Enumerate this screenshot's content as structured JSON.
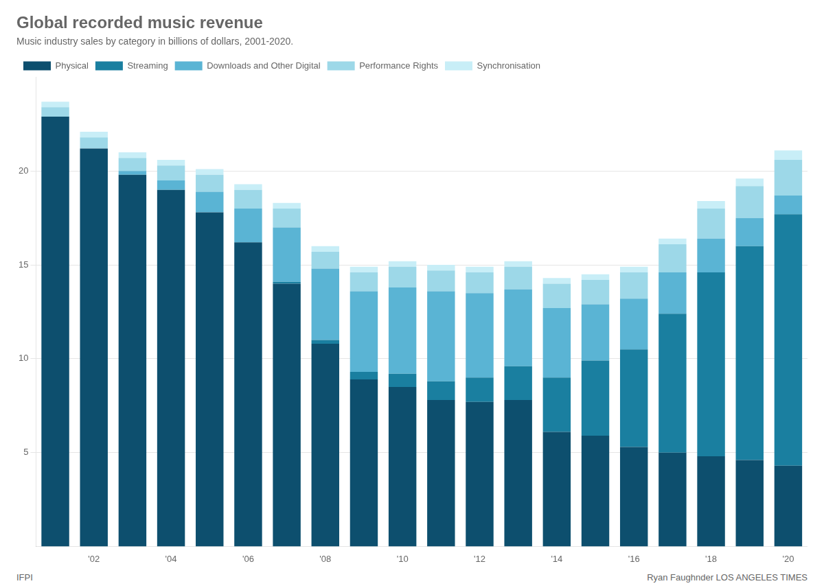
{
  "chart_data": {
    "type": "bar",
    "title": "Global recorded music revenue",
    "subtitle": "Music industry sales by category in billions of dollars, 2001-2020.",
    "annotations": [
      "IFPI",
      "Ryan Faughnder  LOS ANGELES TIMES"
    ],
    "categories": [
      null,
      "'02",
      null,
      "'04",
      null,
      "'06",
      null,
      "'08",
      null,
      "'10",
      null,
      "'12",
      null,
      "'14",
      null,
      "'16",
      null,
      "'18",
      null,
      "'20"
    ],
    "series": [
      {
        "name": "Physical",
        "color": "#0d4f6e",
        "values": [
          22.9,
          21.2,
          19.8,
          19.0,
          17.8,
          16.2,
          14.0,
          10.8,
          8.9,
          8.5,
          7.8,
          7.7,
          7.8,
          6.1,
          5.9,
          5.3,
          5.0,
          4.8,
          4.6,
          4.3
        ]
      },
      {
        "name": "Streaming",
        "color": "#1a7fa0",
        "values": [
          0.0,
          0.0,
          0.0,
          0.0,
          0.0,
          0.0,
          0.1,
          0.2,
          0.4,
          0.7,
          1.0,
          1.3,
          1.8,
          2.9,
          4.0,
          5.2,
          7.4,
          9.8,
          11.4,
          13.4
        ]
      },
      {
        "name": "Downloads and Other Digital",
        "color": "#5ab4d4",
        "values": [
          0.0,
          0.0,
          0.2,
          0.5,
          1.1,
          1.8,
          2.9,
          3.8,
          4.3,
          4.6,
          4.8,
          4.5,
          4.1,
          3.7,
          3.0,
          2.7,
          2.2,
          1.8,
          1.5,
          1.0
        ]
      },
      {
        "name": "Performance Rights",
        "color": "#9dd8e8",
        "values": [
          0.5,
          0.6,
          0.7,
          0.8,
          0.9,
          1.0,
          1.0,
          0.9,
          1.0,
          1.1,
          1.1,
          1.1,
          1.2,
          1.3,
          1.3,
          1.4,
          1.5,
          1.6,
          1.7,
          1.9
        ]
      },
      {
        "name": "Synchronisation",
        "color": "#c8eef7",
        "values": [
          0.3,
          0.3,
          0.3,
          0.3,
          0.3,
          0.3,
          0.3,
          0.3,
          0.3,
          0.3,
          0.3,
          0.3,
          0.3,
          0.3,
          0.3,
          0.3,
          0.3,
          0.4,
          0.4,
          0.5
        ]
      }
    ],
    "ylim": [
      0,
      25
    ],
    "yticks": [
      5,
      10,
      15,
      20
    ],
    "grid": true,
    "stacked": true,
    "legend": "top"
  }
}
